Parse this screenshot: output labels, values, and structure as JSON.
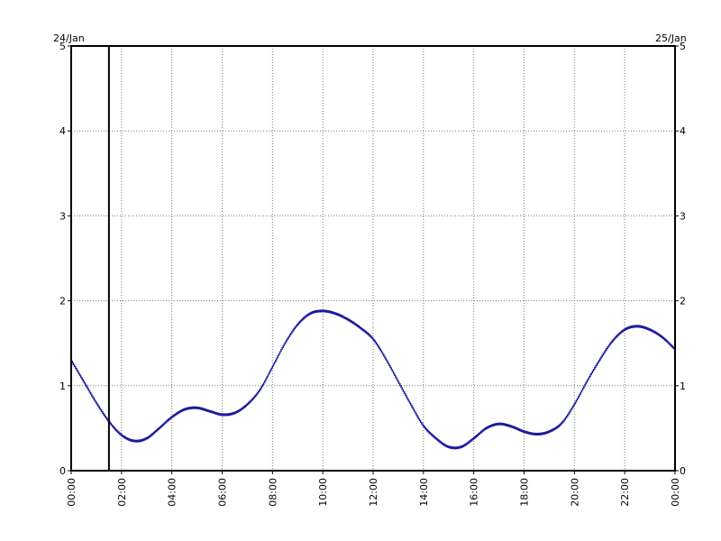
{
  "chart_data": {
    "type": "scatter",
    "start_date_label": "24/Jan",
    "end_date_label": "25/Jan",
    "x_tick_labels": [
      "00:00",
      "02:00",
      "04:00",
      "06:00",
      "08:00",
      "10:00",
      "12:00",
      "14:00",
      "16:00",
      "18:00",
      "20:00",
      "22:00",
      "00:00"
    ],
    "y_tick_labels": [
      "0",
      "1",
      "2",
      "3",
      "4",
      "5"
    ],
    "xlim": [
      "00:00",
      "24:00"
    ],
    "ylim": [
      0,
      5
    ],
    "grid": true,
    "marker_time": "01:30",
    "series_color": "#1a1a9c",
    "series": [
      {
        "x": [
          "00:00",
          "00:30",
          "01:00",
          "01:30",
          "02:00",
          "02:30",
          "03:00",
          "03:30",
          "04:00",
          "04:30",
          "05:00",
          "05:30",
          "06:00",
          "06:30",
          "07:00",
          "07:30",
          "08:00",
          "08:30",
          "09:00",
          "09:30",
          "10:00",
          "10:30",
          "11:00",
          "11:30",
          "12:00",
          "12:30",
          "13:00",
          "13:30",
          "14:00",
          "14:30",
          "15:00",
          "15:30",
          "16:00",
          "16:30",
          "17:00",
          "17:30",
          "18:00",
          "18:30",
          "19:00",
          "19:30",
          "20:00",
          "20:30",
          "21:00",
          "21:30",
          "22:00",
          "22:30",
          "23:00",
          "23:30",
          "24:00"
        ],
        "y": [
          1.3,
          1.05,
          0.8,
          0.58,
          0.42,
          0.35,
          0.38,
          0.5,
          0.63,
          0.72,
          0.74,
          0.7,
          0.66,
          0.68,
          0.78,
          0.95,
          1.22,
          1.5,
          1.72,
          1.85,
          1.88,
          1.85,
          1.78,
          1.68,
          1.55,
          1.32,
          1.05,
          0.78,
          0.53,
          0.38,
          0.28,
          0.28,
          0.38,
          0.5,
          0.55,
          0.52,
          0.46,
          0.43,
          0.46,
          0.56,
          0.78,
          1.05,
          1.3,
          1.52,
          1.66,
          1.7,
          1.66,
          1.57,
          1.43
        ]
      }
    ]
  }
}
